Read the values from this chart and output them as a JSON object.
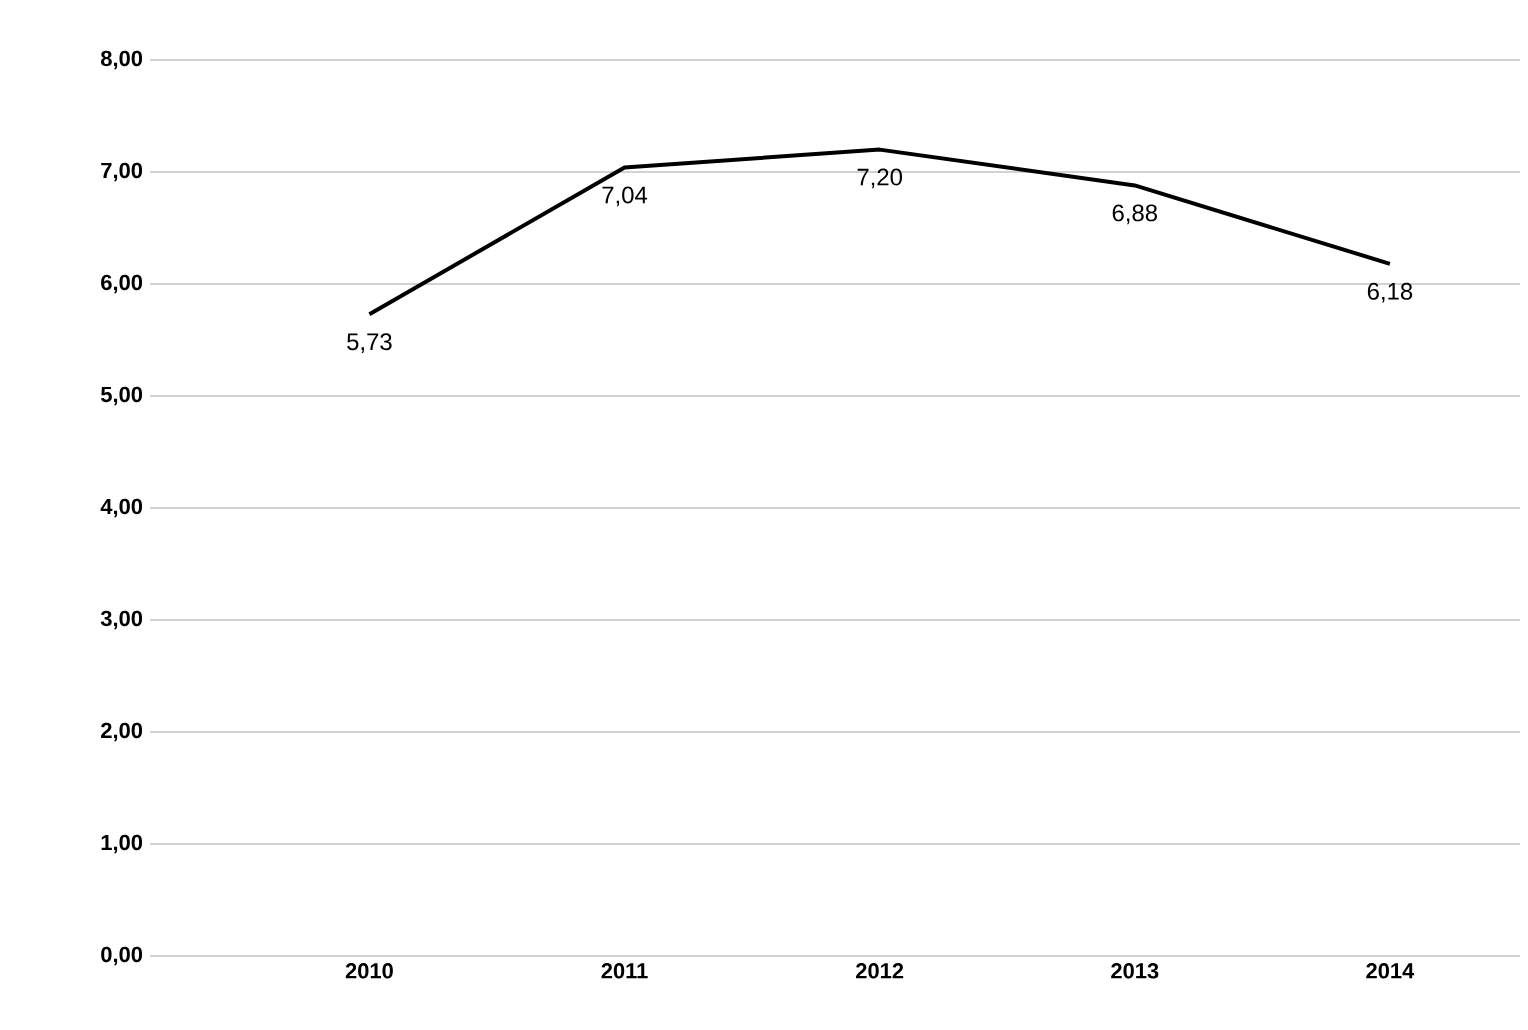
{
  "chart_data": {
    "type": "line",
    "categories": [
      "2010",
      "2011",
      "2012",
      "2013",
      "2014"
    ],
    "values": [
      5.73,
      7.04,
      7.2,
      6.88,
      6.18
    ],
    "value_labels": [
      "5,73",
      "7,04",
      "7,20",
      "6,88",
      "6,18"
    ],
    "color": "#000000",
    "ylim": [
      0,
      8
    ],
    "yticks": [
      {
        "value": 0,
        "label": "0,00"
      },
      {
        "value": 1,
        "label": "1,00"
      },
      {
        "value": 2,
        "label": "2,00"
      },
      {
        "value": 3,
        "label": "3,00"
      },
      {
        "value": 4,
        "label": "4,00"
      },
      {
        "value": 5,
        "label": "5,00"
      },
      {
        "value": 6,
        "label": "6,00"
      },
      {
        "value": 7,
        "label": "7,00"
      },
      {
        "value": 8,
        "label": "8,00"
      }
    ],
    "grid": "y",
    "marker": "none",
    "line_style": "solid"
  }
}
